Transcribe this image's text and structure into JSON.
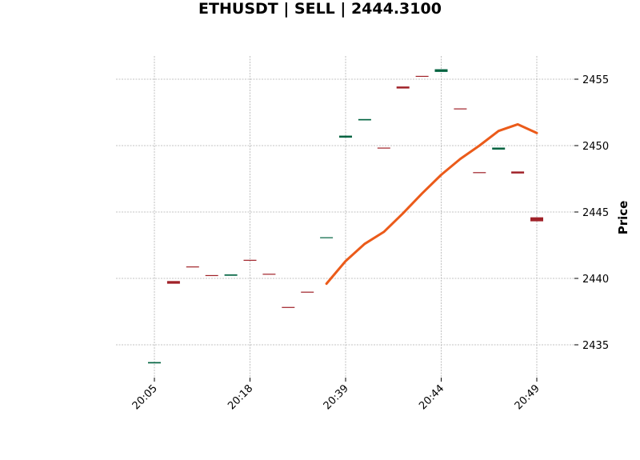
{
  "chart_data": {
    "type": "ohlc",
    "title": "ETHUSDT | SELL | 2444.3100",
    "ylabel": "Price",
    "xlabel": "",
    "ylim": [
      2432.5,
      2456.8
    ],
    "y_ticks": [
      2435,
      2440,
      2445,
      2450,
      2455
    ],
    "x_ticks": [
      {
        "index": 0,
        "label": "20:05"
      },
      {
        "index": 5,
        "label": "20:18"
      },
      {
        "index": 10,
        "label": "20:39"
      },
      {
        "index": 15,
        "label": "20:44"
      },
      {
        "index": 20,
        "label": "20:49"
      }
    ],
    "grid": true,
    "colors": {
      "up": "#006340",
      "down": "#a02128",
      "line": "#eb5b1a",
      "grid": "#b0b0b0"
    },
    "candles": [
      {
        "open": 2433.6,
        "close": 2433.7
      },
      {
        "open": 2439.8,
        "close": 2439.6
      },
      {
        "open": 2440.9,
        "close": 2440.85
      },
      {
        "open": 2440.25,
        "close": 2440.2
      },
      {
        "open": 2440.2,
        "close": 2440.3
      },
      {
        "open": 2441.4,
        "close": 2441.35
      },
      {
        "open": 2440.35,
        "close": 2440.3
      },
      {
        "open": 2437.85,
        "close": 2437.8
      },
      {
        "open": 2439.0,
        "close": 2438.95
      },
      {
        "open": 2443.05,
        "close": 2443.1
      },
      {
        "open": 2450.6,
        "close": 2450.75
      },
      {
        "open": 2451.9,
        "close": 2452.0
      },
      {
        "open": 2449.85,
        "close": 2449.8
      },
      {
        "open": 2454.45,
        "close": 2454.3
      },
      {
        "open": 2455.25,
        "close": 2455.2
      },
      {
        "open": 2455.55,
        "close": 2455.75
      },
      {
        "open": 2452.8,
        "close": 2452.75
      },
      {
        "open": 2448.0,
        "close": 2447.95
      },
      {
        "open": 2449.7,
        "close": 2449.85
      },
      {
        "open": 2448.05,
        "close": 2447.9
      },
      {
        "open": 2444.6,
        "close": 2444.3
      }
    ],
    "series": [
      {
        "name": "moving average",
        "start_index": 9,
        "values": [
          2439.6,
          2441.3,
          2442.6,
          2443.5,
          2444.9,
          2446.4,
          2447.8,
          2449.0,
          2450.0,
          2451.1,
          2451.6,
          2450.95
        ]
      }
    ]
  }
}
